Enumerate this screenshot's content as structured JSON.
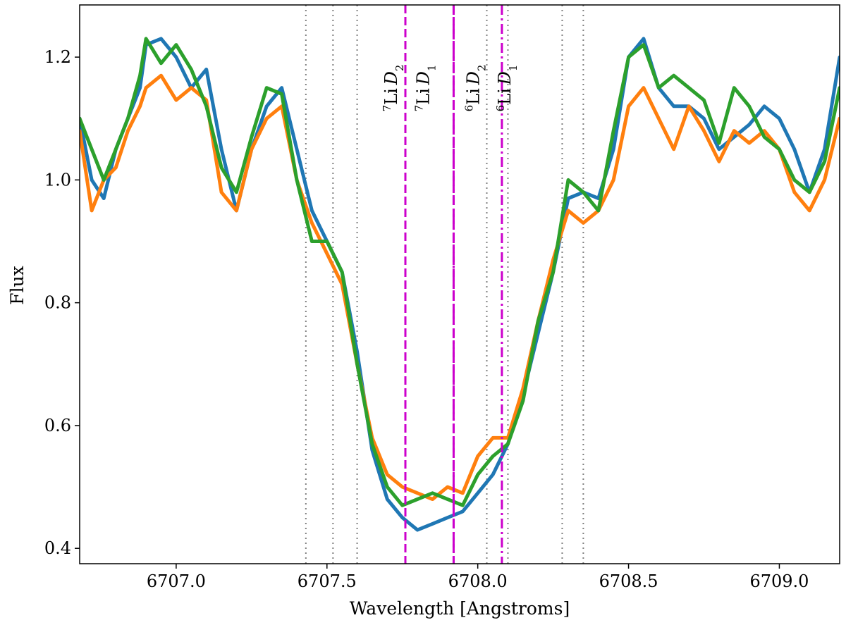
{
  "chart_data": {
    "type": "line",
    "title": "",
    "xlabel": "Wavelength [Angstroms]",
    "ylabel": "Flux",
    "xlim": [
      6706.68,
      6709.2
    ],
    "ylim": [
      0.375,
      1.285
    ],
    "grid": false,
    "legend": "none",
    "x_ticks": [
      6707.0,
      6707.5,
      6708.0,
      6708.5,
      6709.0
    ],
    "x_tick_labels": [
      "6707.0",
      "6707.5",
      "6708.0",
      "6708.5",
      "6709.0"
    ],
    "y_ticks": [
      0.4,
      0.6,
      0.8,
      1.0,
      1.2
    ],
    "y_tick_labels": [
      "0.4",
      "0.6",
      "0.8",
      "1.0",
      "1.2"
    ],
    "series": [
      {
        "color": "#1f77b4",
        "x": [
          6706.68,
          6706.72,
          6706.76,
          6706.8,
          6706.84,
          6706.88,
          6706.9,
          6706.95,
          6707.0,
          6707.05,
          6707.1,
          6707.15,
          6707.2,
          6707.25,
          6707.3,
          6707.35,
          6707.4,
          6707.45,
          6707.5,
          6707.55,
          6707.6,
          6707.65,
          6707.7,
          6707.75,
          6707.8,
          6707.85,
          6707.9,
          6707.95,
          6708.0,
          6708.05,
          6708.1,
          6708.15,
          6708.2,
          6708.25,
          6708.3,
          6708.35,
          6708.4,
          6708.45,
          6708.5,
          6708.55,
          6708.6,
          6708.65,
          6708.7,
          6708.75,
          6708.8,
          6708.85,
          6708.9,
          6708.95,
          6709.0,
          6709.05,
          6709.1,
          6709.15,
          6709.2
        ],
        "y": [
          1.1,
          1.0,
          0.97,
          1.05,
          1.1,
          1.15,
          1.22,
          1.23,
          1.2,
          1.15,
          1.18,
          1.05,
          0.95,
          1.05,
          1.12,
          1.15,
          1.05,
          0.95,
          0.9,
          0.85,
          0.72,
          0.56,
          0.48,
          0.45,
          0.43,
          0.44,
          0.45,
          0.46,
          0.49,
          0.52,
          0.57,
          0.65,
          0.75,
          0.85,
          0.97,
          0.98,
          0.97,
          1.05,
          1.2,
          1.23,
          1.15,
          1.12,
          1.12,
          1.1,
          1.05,
          1.07,
          1.09,
          1.12,
          1.1,
          1.05,
          0.98,
          1.05,
          1.2
        ]
      },
      {
        "color": "#ff7f0e",
        "x": [
          6706.68,
          6706.72,
          6706.76,
          6706.8,
          6706.84,
          6706.88,
          6706.9,
          6706.95,
          6707.0,
          6707.05,
          6707.1,
          6707.15,
          6707.2,
          6707.25,
          6707.3,
          6707.35,
          6707.4,
          6707.45,
          6707.5,
          6707.55,
          6707.6,
          6707.65,
          6707.7,
          6707.75,
          6707.8,
          6707.85,
          6707.9,
          6707.95,
          6708.0,
          6708.05,
          6708.1,
          6708.15,
          6708.2,
          6708.25,
          6708.3,
          6708.35,
          6708.4,
          6708.45,
          6708.5,
          6708.55,
          6708.6,
          6708.65,
          6708.7,
          6708.75,
          6708.8,
          6708.85,
          6708.9,
          6708.95,
          6709.0,
          6709.05,
          6709.1,
          6709.15,
          6709.2
        ],
        "y": [
          1.08,
          0.95,
          1.0,
          1.02,
          1.08,
          1.12,
          1.15,
          1.17,
          1.13,
          1.15,
          1.13,
          0.98,
          0.95,
          1.05,
          1.1,
          1.12,
          1.0,
          0.93,
          0.88,
          0.83,
          0.7,
          0.58,
          0.52,
          0.5,
          0.49,
          0.48,
          0.5,
          0.49,
          0.55,
          0.58,
          0.58,
          0.66,
          0.77,
          0.87,
          0.95,
          0.93,
          0.95,
          1.0,
          1.12,
          1.15,
          1.1,
          1.05,
          1.12,
          1.08,
          1.03,
          1.08,
          1.06,
          1.08,
          1.05,
          0.98,
          0.95,
          1.0,
          1.1
        ]
      },
      {
        "color": "#2ca02c",
        "x": [
          6706.68,
          6706.72,
          6706.76,
          6706.8,
          6706.84,
          6706.88,
          6706.9,
          6706.95,
          6707.0,
          6707.05,
          6707.1,
          6707.15,
          6707.2,
          6707.25,
          6707.3,
          6707.35,
          6707.4,
          6707.45,
          6707.5,
          6707.55,
          6707.6,
          6707.65,
          6707.7,
          6707.75,
          6707.8,
          6707.85,
          6707.9,
          6707.95,
          6708.0,
          6708.05,
          6708.1,
          6708.15,
          6708.2,
          6708.25,
          6708.3,
          6708.35,
          6708.4,
          6708.45,
          6708.5,
          6708.55,
          6708.6,
          6708.65,
          6708.7,
          6708.75,
          6708.8,
          6708.85,
          6708.9,
          6708.95,
          6709.0,
          6709.05,
          6709.1,
          6709.15,
          6709.2
        ],
        "y": [
          1.1,
          1.05,
          1.0,
          1.05,
          1.1,
          1.17,
          1.23,
          1.19,
          1.22,
          1.18,
          1.12,
          1.02,
          0.98,
          1.07,
          1.15,
          1.14,
          1.0,
          0.9,
          0.9,
          0.85,
          0.7,
          0.57,
          0.5,
          0.47,
          0.48,
          0.49,
          0.48,
          0.47,
          0.52,
          0.55,
          0.57,
          0.64,
          0.77,
          0.85,
          1.0,
          0.98,
          0.95,
          1.08,
          1.2,
          1.22,
          1.15,
          1.17,
          1.15,
          1.13,
          1.06,
          1.15,
          1.12,
          1.07,
          1.05,
          1.0,
          0.98,
          1.03,
          1.15
        ]
      }
    ],
    "dotted_lines": {
      "color": "#808080",
      "x": [
        6707.43,
        6707.52,
        6707.6,
        6708.03,
        6708.1,
        6708.28,
        6708.35
      ]
    },
    "marker_lines": [
      {
        "x": 6707.76,
        "style": "dashed",
        "color": "#cc00cc",
        "label_base": "Li",
        "label_sup": "7",
        "label_italic": "D",
        "label_sub": "2"
      },
      {
        "x": 6707.92,
        "style": "dashed",
        "color": "#cc00cc",
        "label_base": "Li",
        "label_sup": "7",
        "label_italic": "D",
        "label_sub": "1"
      },
      {
        "x": 6707.92,
        "style": "dashdot",
        "color": "#cc00cc",
        "label_base": "Li",
        "label_sup": "6",
        "label_italic": "D",
        "label_sub": "2"
      },
      {
        "x": 6708.08,
        "style": "dashdot",
        "color": "#cc00cc",
        "label_base": "Li",
        "label_sup": "6",
        "label_italic": "D",
        "label_sub": "1"
      }
    ]
  }
}
